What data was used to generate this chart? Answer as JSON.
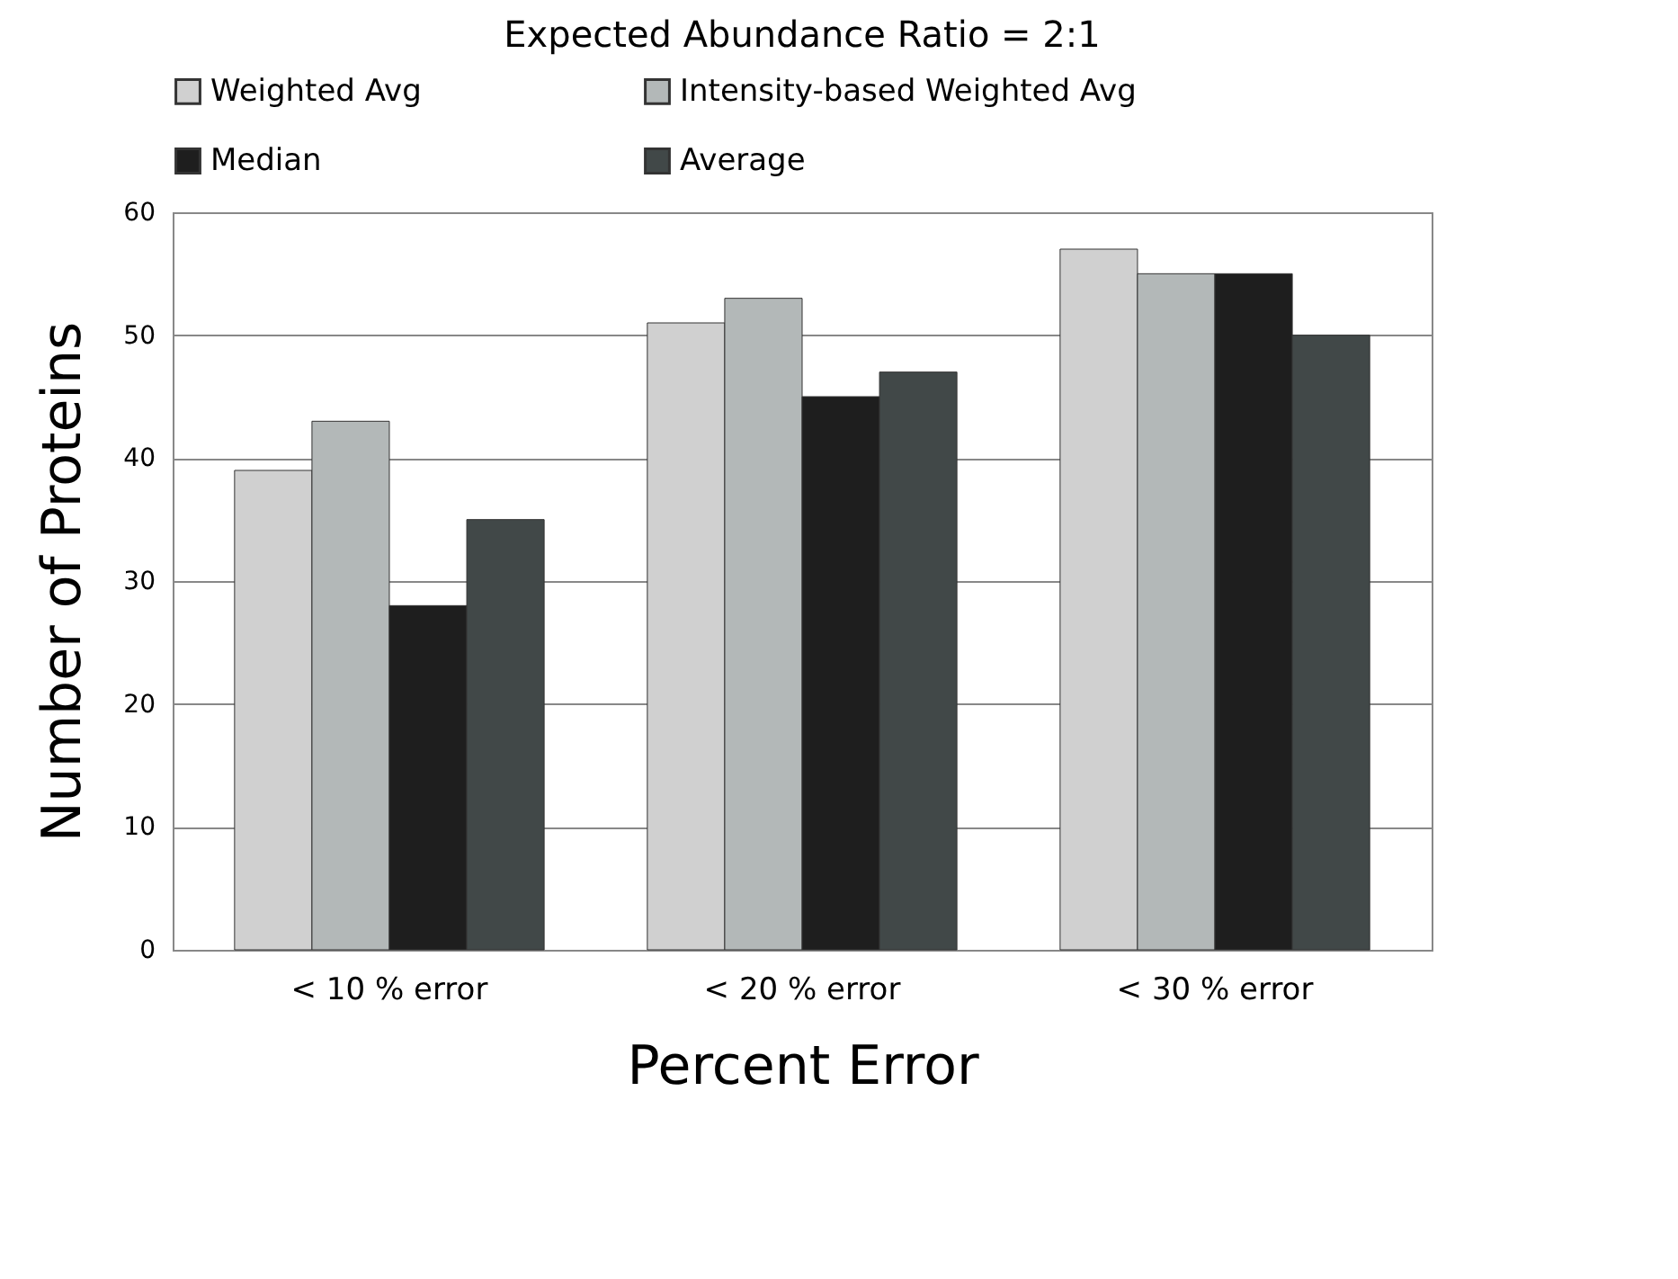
{
  "chart_data": {
    "type": "bar",
    "title": "Expected Abundance Ratio = 2:1",
    "xlabel": "Percent Error",
    "ylabel": "Number of Proteins",
    "categories": [
      "< 10 % error",
      "< 20 % error",
      "< 30 % error"
    ],
    "series": [
      {
        "name": "Weighted Avg",
        "color": "#d0d0d0",
        "values": [
          39,
          51,
          57
        ]
      },
      {
        "name": "Intensity-based Weighted Avg",
        "color": "#b3b8b8",
        "values": [
          43,
          53,
          55
        ]
      },
      {
        "name": "Median",
        "color": "#1e1e1e",
        "values": [
          28,
          45,
          55
        ]
      },
      {
        "name": "Average",
        "color": "#414848",
        "values": [
          35,
          47,
          50
        ]
      }
    ],
    "ylim": [
      0,
      60
    ],
    "yticks": [
      0,
      10,
      20,
      30,
      40,
      50,
      60
    ],
    "grid": "y",
    "legend": "top"
  }
}
